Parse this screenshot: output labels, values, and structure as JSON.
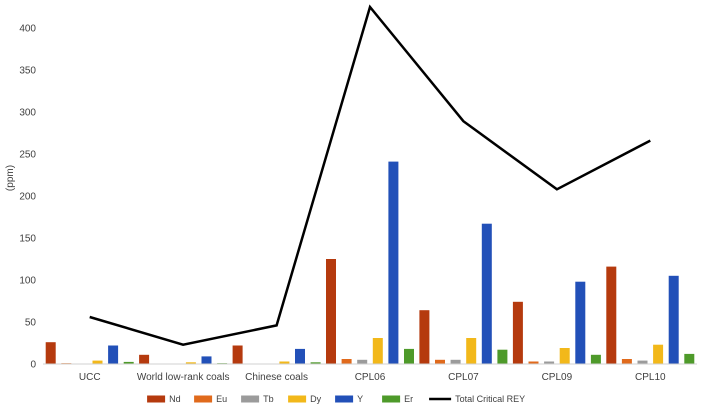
{
  "chart_data": {
    "type": "bar",
    "title": "",
    "xlabel": "",
    "ylabel": "(ppm)",
    "ylim": [
      0,
      425
    ],
    "yticks": [
      0,
      50,
      100,
      150,
      200,
      250,
      300,
      350,
      400
    ],
    "grid": false,
    "legend_position": "bottom",
    "categories": [
      "UCC",
      "World low-rank coals",
      "Chinese coals",
      "CPL06",
      "CPL07",
      "CPL09",
      "CPL10"
    ],
    "series": [
      {
        "name": "Nd",
        "type": "bar",
        "color": "#b53a0e",
        "values": [
          26,
          11,
          22,
          125,
          64,
          74,
          116
        ]
      },
      {
        "name": "Eu",
        "type": "bar",
        "color": "#e06a1c",
        "values": [
          1,
          0.5,
          0.5,
          6,
          5,
          3,
          6
        ]
      },
      {
        "name": "Tb",
        "type": "bar",
        "color": "#9b9b9b",
        "values": [
          0.6,
          0.3,
          0.5,
          5,
          5,
          3,
          4
        ]
      },
      {
        "name": "Dy",
        "type": "bar",
        "color": "#f2b81a",
        "values": [
          4,
          2,
          3,
          31,
          31,
          19,
          23
        ]
      },
      {
        "name": "Y",
        "type": "bar",
        "color": "#2250b8",
        "values": [
          22,
          9,
          18,
          241,
          167,
          98,
          105
        ]
      },
      {
        "name": "Er",
        "type": "bar",
        "color": "#4e9a2a",
        "values": [
          2.5,
          1,
          2,
          18,
          17,
          11,
          12
        ]
      },
      {
        "name": "Total Critical REY",
        "type": "line",
        "color": "#000000",
        "values": [
          56,
          23,
          46,
          425,
          289,
          208,
          266
        ]
      }
    ]
  }
}
